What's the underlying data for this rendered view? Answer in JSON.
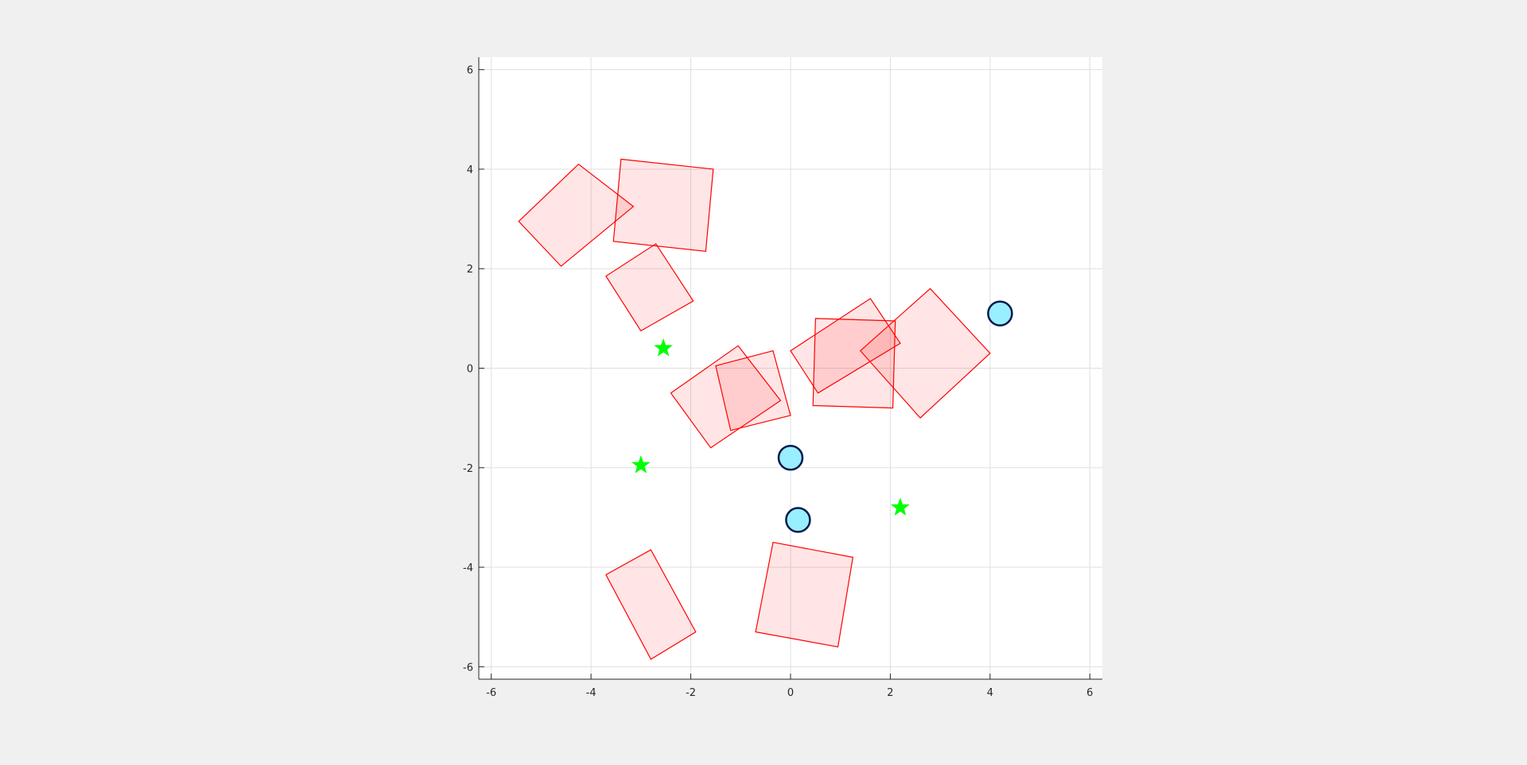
{
  "chart_data": {
    "type": "scatter",
    "title": "",
    "xlabel": "",
    "ylabel": "",
    "xlim": [
      -6.25,
      6.25
    ],
    "ylim": [
      -6.25,
      6.25
    ],
    "xticks": [
      -6,
      -4,
      -2,
      0,
      2,
      4,
      6
    ],
    "yticks": [
      -6,
      -4,
      -2,
      0,
      2,
      4,
      6
    ],
    "xtick_labels": [
      "-6",
      "-4",
      "-2",
      "0",
      "2",
      "4",
      "6"
    ],
    "ytick_labels": [
      "-6",
      "-4",
      "-2",
      "0",
      "2",
      "4",
      "6"
    ],
    "grid": true,
    "obstacles": [
      {
        "vertices": [
          [
            -4.25,
            4.1
          ],
          [
            -3.15,
            3.25
          ],
          [
            -4.6,
            2.05
          ],
          [
            -5.45,
            2.95
          ]
        ]
      },
      {
        "vertices": [
          [
            -3.4,
            4.2
          ],
          [
            -1.55,
            4.0
          ],
          [
            -1.7,
            2.35
          ],
          [
            -3.55,
            2.55
          ]
        ]
      },
      {
        "vertices": [
          [
            -2.7,
            2.5
          ],
          [
            -1.95,
            1.35
          ],
          [
            -3.0,
            0.75
          ],
          [
            -3.7,
            1.85
          ]
        ]
      },
      {
        "vertices": [
          [
            -1.05,
            0.45
          ],
          [
            -0.2,
            -0.65
          ],
          [
            -1.6,
            -1.6
          ],
          [
            -2.4,
            -0.5
          ]
        ]
      },
      {
        "vertices": [
          [
            -0.35,
            0.35
          ],
          [
            -1.5,
            0.05
          ],
          [
            -1.2,
            -1.25
          ],
          [
            0.0,
            -0.95
          ]
        ]
      },
      {
        "vertices": [
          [
            0.0,
            0.35
          ],
          [
            1.6,
            1.4
          ],
          [
            2.2,
            0.5
          ],
          [
            0.55,
            -0.5
          ]
        ]
      },
      {
        "vertices": [
          [
            0.5,
            1.0
          ],
          [
            2.1,
            0.95
          ],
          [
            2.05,
            -0.8
          ],
          [
            0.45,
            -0.75
          ]
        ]
      },
      {
        "vertices": [
          [
            2.8,
            1.6
          ],
          [
            4.0,
            0.3
          ],
          [
            2.6,
            -1.0
          ],
          [
            1.4,
            0.35
          ]
        ]
      },
      {
        "vertices": [
          [
            -2.8,
            -3.65
          ],
          [
            -1.9,
            -5.3
          ],
          [
            -2.8,
            -5.85
          ],
          [
            -3.7,
            -4.15
          ]
        ]
      },
      {
        "vertices": [
          [
            -0.35,
            -3.5
          ],
          [
            1.25,
            -3.8
          ],
          [
            0.95,
            -5.6
          ],
          [
            -0.7,
            -5.3
          ]
        ]
      }
    ],
    "stars": [
      {
        "x": -2.55,
        "y": 0.4
      },
      {
        "x": -3.0,
        "y": -1.95
      },
      {
        "x": 2.2,
        "y": -2.8
      }
    ],
    "circles": [
      {
        "x": 4.2,
        "y": 1.1
      },
      {
        "x": 0.0,
        "y": -1.8
      },
      {
        "x": 0.15,
        "y": -3.05
      }
    ],
    "colors": {
      "obstacle_fill": "#ff0000",
      "obstacle_edge": "#ff0000",
      "star": "#00ff00",
      "circle_fill": "#99eeff",
      "circle_edge": "#001a4d",
      "grid": "#dfdfdf",
      "axis": "#262626",
      "axes_background": "#ffffff",
      "figure_background": "#f0f0f0"
    }
  }
}
